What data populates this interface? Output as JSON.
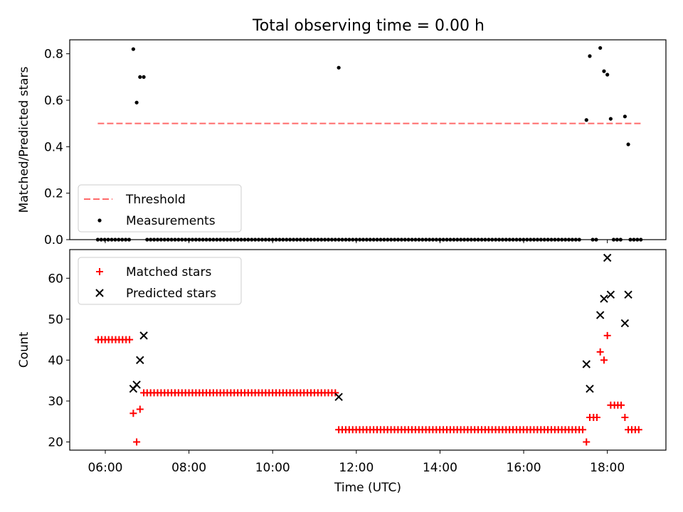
{
  "chart_data": [
    {
      "type": "scatter",
      "title": "Total observing time = 0.00 h",
      "xlabel": "",
      "ylabel": "Matched/Predicted stars",
      "ylim": [
        0,
        0.86
      ],
      "yticks": [
        0.0,
        0.2,
        0.4,
        0.6,
        0.8
      ],
      "ytick_labels": [
        "0.0",
        "0.2",
        "0.4",
        "0.6",
        "0.8"
      ],
      "xlim_hours": [
        5.15,
        19.4
      ],
      "xticks_hours": [
        6,
        8,
        10,
        12,
        14,
        16,
        18
      ],
      "xtick_labels": [
        "06:00",
        "08:00",
        "10:00",
        "12:00",
        "14:00",
        "16:00",
        "18:00"
      ],
      "show_x_tick_labels": false,
      "legend_position": "lower-left",
      "series": [
        {
          "name": "Threshold",
          "kind": "line",
          "color": "#ff6a6a",
          "x_hours": [
            5.82,
            18.83
          ],
          "y": [
            0.5,
            0.5
          ]
        },
        {
          "name": "Measurements",
          "kind": "scatter",
          "color": "#000000",
          "x_hours": [
            6.67,
            6.75,
            6.83,
            6.92,
            11.58,
            17.5,
            17.58,
            17.83,
            17.92,
            18.0,
            18.08,
            18.42,
            18.5
          ],
          "y": [
            0.82,
            0.59,
            0.7,
            0.7,
            0.74,
            0.515,
            0.79,
            0.825,
            0.725,
            0.71,
            0.52,
            0.53,
            0.41
          ],
          "zero_segments_hours": [
            [
              5.82,
              6.6
            ],
            [
              7.0,
              17.4
            ],
            [
              17.65,
              17.78
            ],
            [
              18.15,
              18.35
            ],
            [
              18.55,
              18.85
            ]
          ],
          "zero_step_hours": 0.0833
        }
      ]
    },
    {
      "type": "scatter",
      "title": "",
      "xlabel": "Time (UTC)",
      "ylabel": "Count",
      "ylim": [
        18,
        67
      ],
      "yticks": [
        20,
        30,
        40,
        50,
        60
      ],
      "ytick_labels": [
        "20",
        "30",
        "40",
        "50",
        "60"
      ],
      "xlim_hours": [
        5.15,
        19.4
      ],
      "xticks_hours": [
        6,
        8,
        10,
        12,
        14,
        16,
        18
      ],
      "xtick_labels": [
        "06:00",
        "08:00",
        "10:00",
        "12:00",
        "14:00",
        "16:00",
        "18:00"
      ],
      "legend_position": "upper-left",
      "series": [
        {
          "name": "Matched stars",
          "marker": "plus",
          "color": "#ff0000",
          "segments": [
            {
              "from_hours": 5.83,
              "to_hours": 6.58,
              "step_hours": 0.0833,
              "y": 45
            },
            {
              "from_hours": 7.0,
              "to_hours": 11.5,
              "step_hours": 0.0833,
              "y": 32
            },
            {
              "from_hours": 11.58,
              "to_hours": 17.42,
              "step_hours": 0.0833,
              "y": 23
            },
            {
              "from_hours": 18.5,
              "to_hours": 18.83,
              "step_hours": 0.0833,
              "y": 23
            }
          ],
          "x_hours": [
            6.67,
            6.75,
            6.83,
            6.92,
            17.5,
            17.58,
            17.67,
            17.75,
            17.83,
            17.92,
            18.0,
            18.08,
            18.17,
            18.25,
            18.33,
            18.42
          ],
          "y": [
            27,
            20,
            28,
            32,
            20,
            26,
            26,
            26,
            42,
            40,
            46,
            29,
            29,
            29,
            29,
            26
          ]
        },
        {
          "name": "Predicted stars",
          "marker": "x",
          "color": "#000000",
          "x_hours": [
            6.67,
            6.75,
            6.83,
            6.92,
            11.58,
            17.5,
            17.58,
            17.83,
            17.92,
            18.0,
            18.08,
            18.42,
            18.5
          ],
          "y": [
            33,
            34,
            40,
            46,
            31,
            39,
            33,
            51,
            55,
            65,
            56,
            49,
            56
          ]
        }
      ]
    }
  ]
}
